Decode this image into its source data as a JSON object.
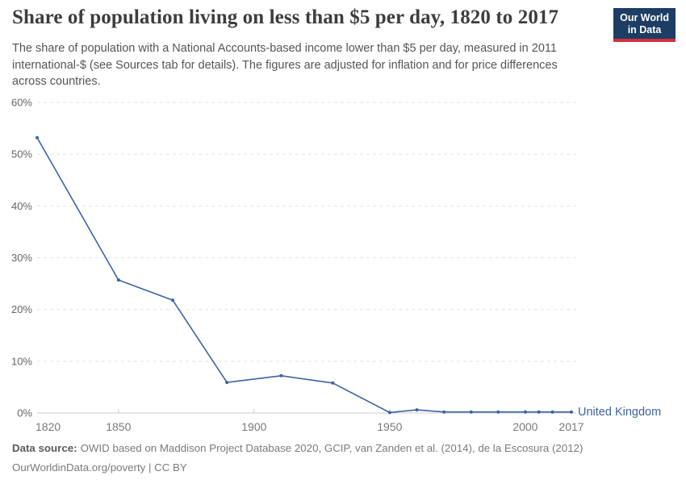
{
  "header": {
    "title": "Share of population living on less than $5 per day, 1820 to 2017",
    "subtitle": "The share of population with a National Accounts-based income lower than $5 per day, measured in 2011 international-$ (see Sources tab for details). The figures are adjusted for inflation and for price differences across countries.",
    "logo": {
      "line1": "Our World",
      "line2": "in Data"
    }
  },
  "chart_data": {
    "type": "line",
    "title": "Share of population living on less than $5 per day, 1820 to 2017",
    "xlabel": "",
    "ylabel": "",
    "xlim": [
      1820,
      2017
    ],
    "ylim": [
      0,
      60
    ],
    "x_tick_labels": [
      "1820",
      "1850",
      "1900",
      "1950",
      "2000",
      "2017"
    ],
    "x_tick_years": [
      1820,
      1850,
      1900,
      1950,
      2000,
      2017
    ],
    "x_tick_marks": [
      1850,
      1900,
      1950,
      2000
    ],
    "y_ticks": [
      0,
      10,
      20,
      30,
      40,
      50,
      60
    ],
    "y_tick_suffix": "%",
    "grid": "horizontal-dashed",
    "legend_position": "end-of-line",
    "series": [
      {
        "name": "United Kingdom",
        "color": "#3d62a3",
        "points": [
          [
            1820,
            53.2
          ],
          [
            1850,
            25.7
          ],
          [
            1870,
            21.8
          ],
          [
            1890,
            5.9
          ],
          [
            1910,
            7.2
          ],
          [
            1929,
            5.8
          ],
          [
            1950,
            0.1
          ],
          [
            1960,
            0.6
          ],
          [
            1970,
            0.2
          ],
          [
            1980,
            0.2
          ],
          [
            1990,
            0.2
          ],
          [
            2000,
            0.2
          ],
          [
            2005,
            0.2
          ],
          [
            2010,
            0.2
          ],
          [
            2017,
            0.2
          ]
        ]
      }
    ]
  },
  "footer": {
    "source_label": "Data source:",
    "source_text": "OWID based on Maddison Project Database 2020, GCIP, van Zanden et al. (2014), de la Escosura (2012)",
    "license_line": "OurWorldinData.org/poverty | CC BY"
  },
  "colors": {
    "line": "#3d62a3",
    "grid": "#e2e2e2",
    "axis": "#cccccc",
    "y_label": "#666666",
    "x_label": "#7a7a7a",
    "title": "#3d3d3d",
    "subtitle": "#555555",
    "logo_bg": "#1d3d63",
    "logo_red": "#cf323c"
  }
}
